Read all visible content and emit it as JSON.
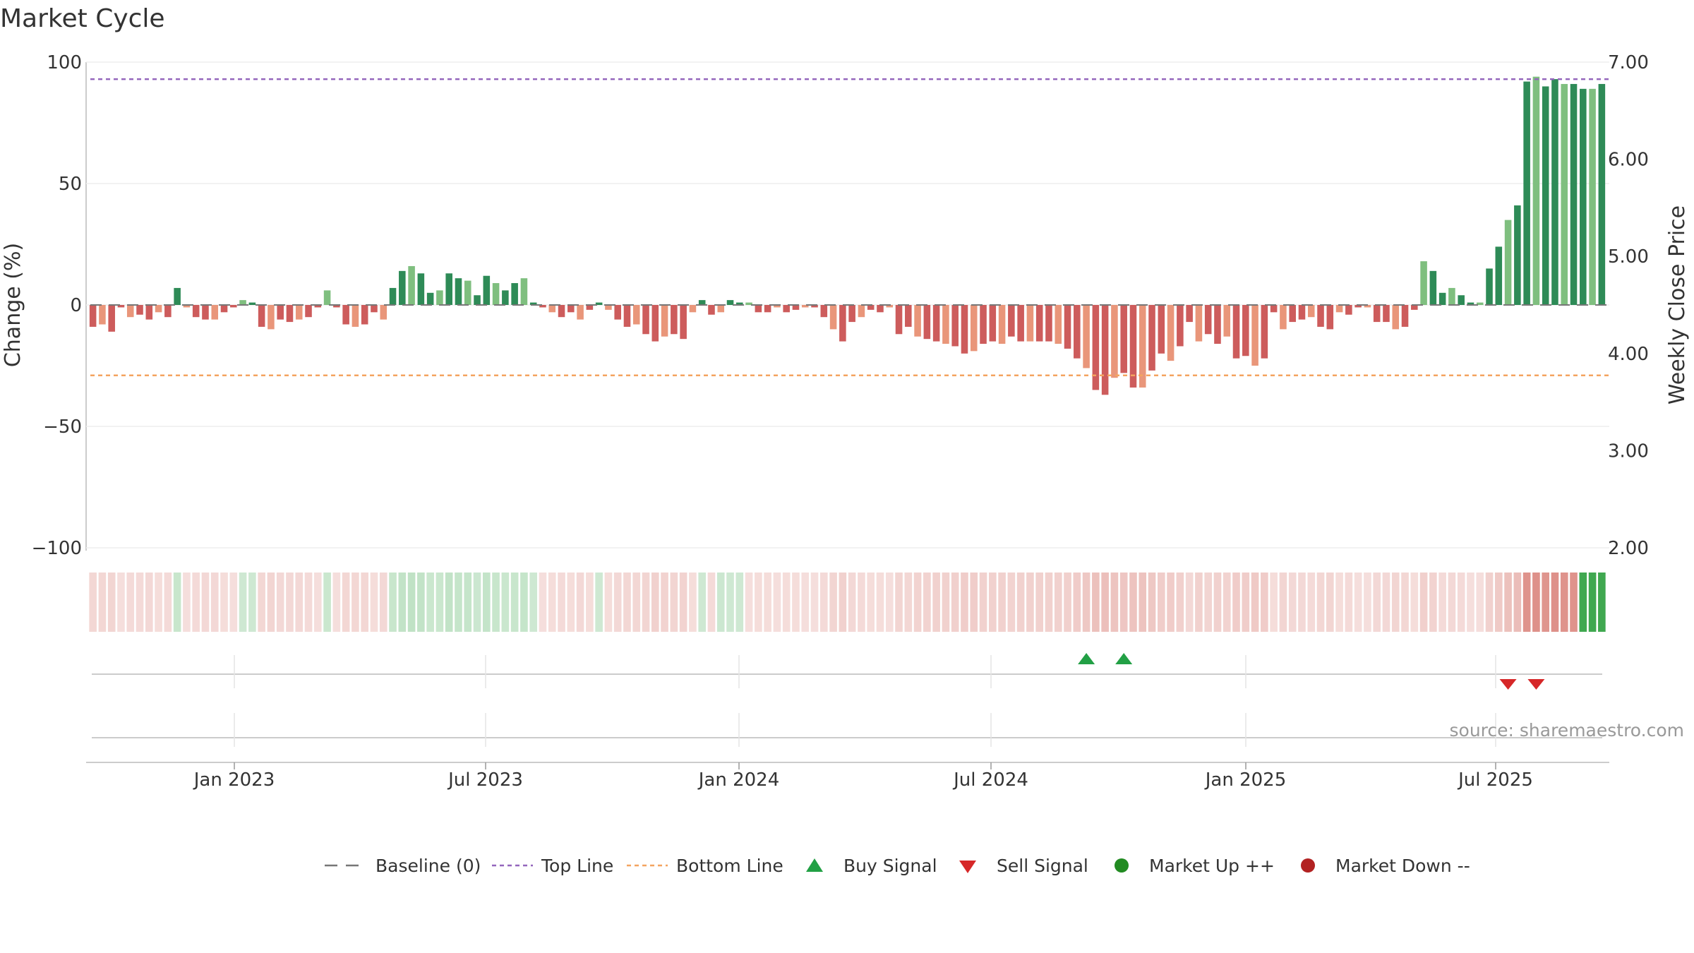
{
  "chart_data": {
    "type": "bar",
    "title": "Market Cycle",
    "ylabel": "Change (%)",
    "y2label": "Weekly Close Price",
    "ylim": [
      -100,
      100
    ],
    "y2lim": [
      2.0,
      7.0
    ],
    "yticks": [
      "100",
      "50",
      "0",
      "−50",
      "−100"
    ],
    "y2ticks": [
      "7.00",
      "6.00",
      "5.00",
      "4.00",
      "3.00",
      "2.00"
    ],
    "x_ticks": [
      "Jan 2023",
      "Jul 2023",
      "Jan 2024",
      "Jul 2024",
      "Jan 2025",
      "Jul 2025"
    ],
    "top_line": 93,
    "bottom_line": -29,
    "source": "source: sharemaestro.com",
    "grid": true,
    "legend_position": "bottom",
    "values": [
      -9,
      -8,
      -11,
      -1,
      -5,
      -4,
      -6,
      -3,
      -5,
      7,
      -1,
      -5,
      -6,
      -6,
      -3,
      -1,
      2,
      1,
      -9,
      -10,
      -6,
      -7,
      -6,
      -5,
      -1,
      6,
      -1,
      -8,
      -9,
      -8,
      -3,
      -6,
      7,
      14,
      16,
      13,
      5,
      6,
      13,
      11,
      10,
      4,
      12,
      9,
      6,
      9,
      11,
      1,
      -1,
      -3,
      -5,
      -3,
      -6,
      -2,
      1,
      -2,
      -6,
      -9,
      -8,
      -12,
      -15,
      -13,
      -12,
      -14,
      -3,
      2,
      -4,
      -3,
      2,
      1,
      1,
      -3,
      -3,
      -1,
      -3,
      -2,
      -1,
      -1,
      -5,
      -10,
      -15,
      -7,
      -5,
      -2,
      -3,
      -1,
      -12,
      -9,
      -13,
      -14,
      -15,
      -16,
      -17,
      -20,
      -19,
      -16,
      -15,
      -16,
      -13,
      -15,
      -15,
      -15,
      -15,
      -16,
      -18,
      -22,
      -26,
      -35,
      -37,
      -30,
      -28,
      -34,
      -34,
      -27,
      -20,
      -23,
      -17,
      -7,
      -15,
      -12,
      -16,
      -13,
      -22,
      -21,
      -25,
      -22,
      -3,
      -10,
      -7,
      -6,
      -5,
      -9,
      -10,
      -3,
      -4,
      -1,
      -1,
      -7,
      -7,
      -10,
      -9,
      -2,
      18,
      14,
      5,
      7,
      4,
      1,
      1,
      15,
      24,
      35,
      41,
      92,
      94,
      90,
      93,
      91,
      91,
      89,
      89,
      91
    ],
    "state_strip": "RRRRRRRRRGRRRRRRGGRRRRRRRGRRRRRRGGGGGGGGGGGGGGGGRRRRRRGRRRRRRRRRRGRGGGRRRRRRRRRRRRRRRRRRRRRRRRRRRRRRRRRRRRRRRRRRRRRRRRRRRRRRRRRRRRRRRRRRRRRRRRRRRRRRRRRRRRRRRRRGGGGGGGGGGGGGGGGGGGGGG",
    "buy_signals": [
      106,
      110
    ],
    "sell_signals": [
      151,
      154
    ],
    "colors": {
      "pos_strong": "#2e8b57",
      "pos_light": "#7fbf7f",
      "neg_strong": "#cd5c5c",
      "neg_light": "#e9967a",
      "top_line": "#9467bd",
      "bottom_line": "#f4a460",
      "buy": "#22a045",
      "sell": "#d62728",
      "market_up": "#228b22",
      "market_down": "#b22222",
      "strip_green": "#40a850",
      "strip_red": "#c8483c"
    },
    "legend": {
      "baseline": "Baseline (0)",
      "top": "Top Line",
      "bottom": "Bottom Line",
      "buy": "Buy Signal",
      "sell": "Sell Signal",
      "up": "Market Up ++",
      "down": "Market Down --"
    }
  }
}
